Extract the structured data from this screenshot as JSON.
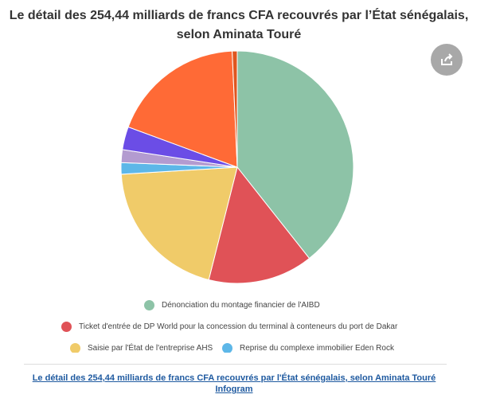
{
  "title": "Le détail des 254,44 milliards de francs CFA recouvrés par l’État sénégalais, selon Aminata Touré",
  "share_icon": "share-icon",
  "chart_data": {
    "type": "pie",
    "title": "Le détail des 254,44 milliards de francs CFA recouvrés par l’État sénégalais, selon Aminata Touré",
    "unit": "percent (estimated)",
    "slices": [
      {
        "name": "Dénonciation du montage financier de l'AIBD",
        "value": 39.4,
        "color": "#8dc3a7"
      },
      {
        "name": "Ticket d'entrée de DP World pour la concession du terminal à conteneurs du port de Dakar",
        "value": 14.6,
        "color": "#e05257"
      },
      {
        "name": "Saisie par l'État de l'entreprise AHS",
        "value": 20.1,
        "color": "#f0cb69"
      },
      {
        "name": "Reprise du complexe immobilier Eden Rock",
        "value": 1.6,
        "color": "#5db7e8"
      },
      {
        "value": 1.8,
        "color": "#b39bd0"
      },
      {
        "value": 3.2,
        "color": "#6b4de6"
      },
      {
        "value": 18.7,
        "color": "#ff6a36"
      },
      {
        "value": 0.7,
        "color": "#e0561f"
      }
    ],
    "legend": "bottom"
  },
  "footer": {
    "link": "Le détail des 254,44 milliards de francs CFA recouvrés par l'État sénégalais, selon Aminata Touré",
    "source": "Infogram"
  }
}
